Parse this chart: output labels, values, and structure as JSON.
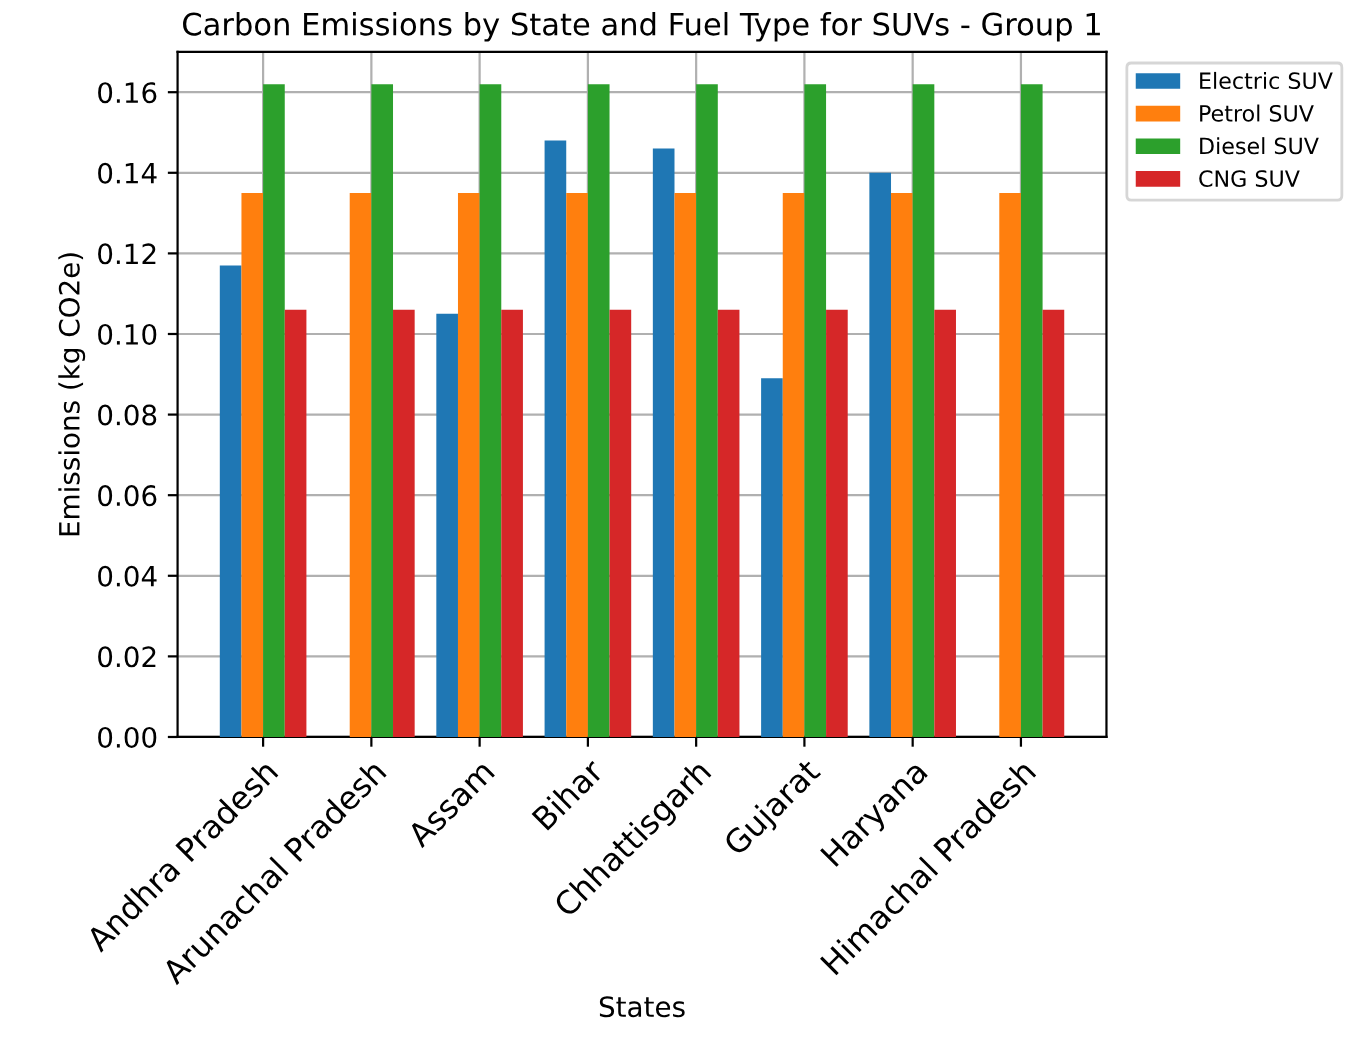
{
  "chart_data": {
    "type": "bar",
    "title": "Carbon Emissions by State and Fuel Type for SUVs - Group 1",
    "xlabel": "States",
    "ylabel": "Emissions (kg CO2e)",
    "categories": [
      "Andhra Pradesh",
      "Arunachal Pradesh",
      "Assam",
      "Bihar",
      "Chhattisgarh",
      "Gujarat",
      "Haryana",
      "Himachal Pradesh"
    ],
    "series": [
      {
        "name": "Electric SUV",
        "color": "#1f77b4",
        "values": [
          0.117,
          null,
          0.105,
          0.148,
          0.146,
          0.089,
          0.14,
          null
        ]
      },
      {
        "name": "Petrol SUV",
        "color": "#ff7f0e",
        "values": [
          0.135,
          0.135,
          0.135,
          0.135,
          0.135,
          0.135,
          0.135,
          0.135
        ]
      },
      {
        "name": "Diesel SUV",
        "color": "#2ca02c",
        "values": [
          0.162,
          0.162,
          0.162,
          0.162,
          0.162,
          0.162,
          0.162,
          0.162
        ]
      },
      {
        "name": "CNG SUV",
        "color": "#d62728",
        "values": [
          0.106,
          0.106,
          0.106,
          0.106,
          0.106,
          0.106,
          0.106,
          0.106
        ]
      }
    ],
    "ylim": [
      0,
      0.17
    ],
    "yticks": [
      {
        "value": 0,
        "label": "0.00"
      },
      {
        "value": 0.02,
        "label": "0.02"
      },
      {
        "value": 0.04,
        "label": "0.04"
      },
      {
        "value": 0.06,
        "label": "0.06"
      },
      {
        "value": 0.08,
        "label": "0.08"
      },
      {
        "value": 0.1,
        "label": "0.10"
      },
      {
        "value": 0.12,
        "label": "0.12"
      },
      {
        "value": 0.14,
        "label": "0.14"
      },
      {
        "value": 0.16,
        "label": "0.16"
      }
    ],
    "grid": true,
    "legend": "right"
  }
}
